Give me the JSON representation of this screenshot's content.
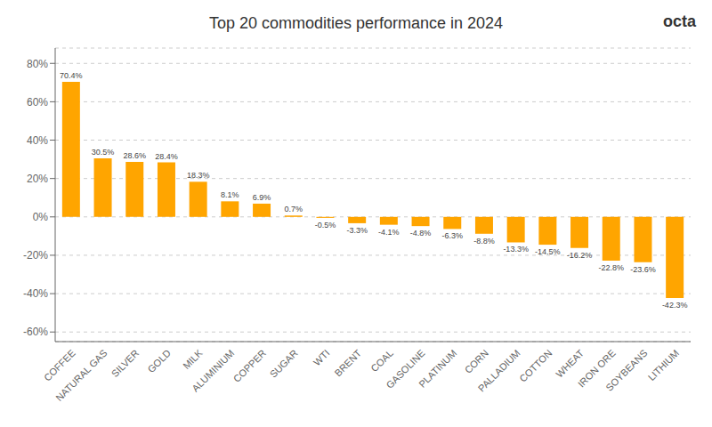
{
  "chart_data": {
    "type": "bar",
    "title": "Top 20 commodities performance in 2024",
    "categories": [
      "COFFEE",
      "NATURAL GAS",
      "SILVER",
      "GOLD",
      "MILK",
      "ALUMINIUM",
      "COPPER",
      "SUGAR",
      "WTI",
      "BRENT",
      "COAL",
      "GASOLINE",
      "PLATINUM",
      "CORN",
      "PALLADIUM",
      "COTTON",
      "WHEAT",
      "IRON ORE",
      "SOYBEANS",
      "LITHIUM"
    ],
    "values": [
      70.4,
      30.5,
      28.6,
      28.4,
      18.3,
      8.1,
      6.9,
      0.7,
      -0.5,
      -3.3,
      -4.1,
      -4.8,
      -6.3,
      -8.8,
      -13.3,
      -14.5,
      -16.2,
      -22.8,
      -23.6,
      -42.3
    ],
    "value_labels": [
      "70.4%",
      "30.5%",
      "28.6%",
      "28.4%",
      "18.3%",
      "8.1%",
      "6.9%",
      "0.7%",
      "-0.5%",
      "-3.3%",
      "-4.1%",
      "-4.8%",
      "-6.3%",
      "-8.8%",
      "-13.3%",
      "-14.5%",
      "-16.2%",
      "-22.8%",
      "-23.6%",
      "-42.3%"
    ],
    "color": "#FFA500",
    "ylim": [
      -65,
      88
    ],
    "yticks": [
      {
        "value": -60,
        "label": "-60%"
      },
      {
        "value": -40,
        "label": "-40%"
      },
      {
        "value": -20,
        "label": "-20%"
      },
      {
        "value": 0,
        "label": "0%"
      },
      {
        "value": 20,
        "label": "20%"
      },
      {
        "value": 40,
        "label": "40%"
      },
      {
        "value": 60,
        "label": "60%"
      },
      {
        "value": 80,
        "label": "80%"
      }
    ],
    "grid": true,
    "data_labels": true,
    "annotations": [
      "octa"
    ]
  }
}
